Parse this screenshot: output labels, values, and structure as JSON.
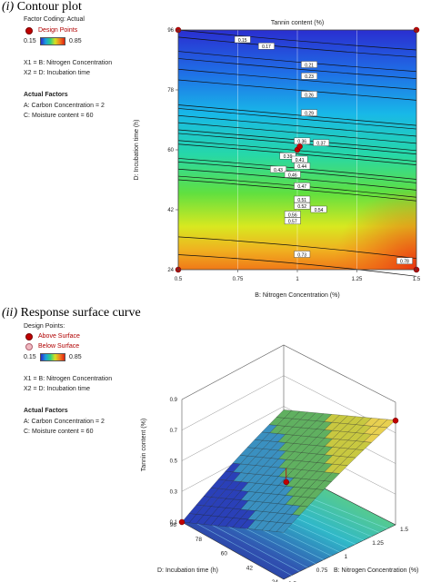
{
  "panel1": {
    "heading_prefix": "(i)",
    "heading_text": "Contour plot",
    "factor_coding": "Factor Coding: Actual",
    "design_points_label": "Design Points",
    "scale_min": "0.15",
    "scale_max": "0.85",
    "x1": "X1 = B: Nitrogen Concentration",
    "x2": "X2 = D: Incubation time",
    "actual_factors_title": "Actual Factors",
    "factor_a": "A: Carbon Concentration   = 2",
    "factor_c": "C: Moisture content   = 60"
  },
  "panel2": {
    "heading_prefix": "(ii)",
    "heading_text": "Response surface curve",
    "design_points_label": "Design Points:",
    "above_label": "Above Surface",
    "below_label": "Below Surface",
    "scale_min": "0.15",
    "scale_max": "0.85",
    "x1": "X1 = B: Nitrogen Concentration",
    "x2": "X2 = D: Incubation time",
    "actual_factors_title": "Actual Factors",
    "factor_a": "A: Carbon Concentration   = 2",
    "factor_c": "C: Moisture content   = 60"
  },
  "colors": {
    "design_point": "#c00000",
    "above_point": "#c00000",
    "below_point": "#f0b8c0"
  },
  "chart_data": [
    {
      "type": "contour",
      "title": "Tannin content (%)",
      "xlabel": "B: Nitrogen Concentration  (%)",
      "ylabel": "D: Incubation time (h)",
      "xlim": [
        0.5,
        1.5
      ],
      "ylim": [
        24,
        96
      ],
      "x_ticks": [
        "0.5",
        "0.75",
        "1",
        "1.25",
        "1.5"
      ],
      "y_ticks": [
        "24",
        "42",
        "60",
        "78",
        "96"
      ],
      "x_tick_values": [
        0.5,
        0.75,
        1,
        1.25,
        1.5
      ],
      "y_tick_values": [
        24,
        42,
        60,
        78,
        96
      ],
      "contour_levels": [
        0.15,
        0.17,
        0.21,
        0.23,
        0.26,
        0.29,
        0.36,
        0.37,
        0.39,
        0.41,
        0.43,
        0.44,
        0.46,
        0.47,
        0.51,
        0.52,
        0.54,
        0.56,
        0.57,
        0.73,
        0.78
      ],
      "contour_labels": [
        {
          "text": "0.15",
          "x": 0.77,
          "y": 93.0
        },
        {
          "text": "0.17",
          "x": 0.87,
          "y": 91.0
        },
        {
          "text": "0.21",
          "x": 1.05,
          "y": 85.5
        },
        {
          "text": "0.23",
          "x": 1.05,
          "y": 82.0
        },
        {
          "text": "0.26",
          "x": 1.05,
          "y": 76.5
        },
        {
          "text": "0.29",
          "x": 1.05,
          "y": 71.0
        },
        {
          "text": "0.36",
          "x": 1.02,
          "y": 62.5
        },
        {
          "text": "0.37",
          "x": 1.1,
          "y": 62.0
        },
        {
          "text": "0.39",
          "x": 0.96,
          "y": 58.0
        },
        {
          "text": "0.41",
          "x": 1.01,
          "y": 57.0
        },
        {
          "text": "0.43",
          "x": 0.92,
          "y": 54.0
        },
        {
          "text": "0.44",
          "x": 1.02,
          "y": 55.0
        },
        {
          "text": "0.46",
          "x": 0.98,
          "y": 52.5
        },
        {
          "text": "0.47",
          "x": 1.02,
          "y": 49.0
        },
        {
          "text": "0.51",
          "x": 1.02,
          "y": 45.0
        },
        {
          "text": "0.52",
          "x": 1.02,
          "y": 43.0
        },
        {
          "text": "0.54",
          "x": 1.09,
          "y": 42.0
        },
        {
          "text": "0.56",
          "x": 0.98,
          "y": 40.5
        },
        {
          "text": "0.57",
          "x": 0.98,
          "y": 38.5
        },
        {
          "text": "0.73",
          "x": 1.02,
          "y": 28.5
        },
        {
          "text": "0.78",
          "x": 1.45,
          "y": 26.5
        }
      ],
      "design_points": [
        {
          "x": 0.5,
          "y": 96
        },
        {
          "x": 1.5,
          "y": 96
        },
        {
          "x": 0.5,
          "y": 24
        },
        {
          "x": 1.5,
          "y": 24
        },
        {
          "x": 1.0,
          "y": 60
        },
        {
          "x": 1.01,
          "y": 61
        }
      ],
      "grid": true
    },
    {
      "type": "surface3d",
      "zlabel": "Tannin content (%)",
      "xlabel": "B: Nitrogen Concentration  (%)",
      "ylabel": "D: Incubation time (h)",
      "x_ticks": [
        "0.5",
        "0.75",
        "1",
        "1.25",
        "1.5"
      ],
      "y_ticks": [
        "24",
        "42",
        "60",
        "78",
        "96"
      ],
      "y_tick_labels_shown": [
        "96",
        "78",
        "60",
        "42",
        "24"
      ],
      "z_ticks": [
        "0.1",
        "0.3",
        "0.5",
        "0.7",
        "0.9"
      ],
      "xlim": [
        0.5,
        1.5
      ],
      "ylim": [
        24,
        96
      ],
      "zlim": [
        0.1,
        0.9
      ],
      "design_points": [
        {
          "x": 0.5,
          "y": 96,
          "z": 0.1,
          "position": "above"
        },
        {
          "x": 1.5,
          "y": 24,
          "z": 0.78,
          "position": "above"
        },
        {
          "x": 1.0,
          "y": 60,
          "z": 0.37,
          "position": "above"
        }
      ]
    }
  ]
}
